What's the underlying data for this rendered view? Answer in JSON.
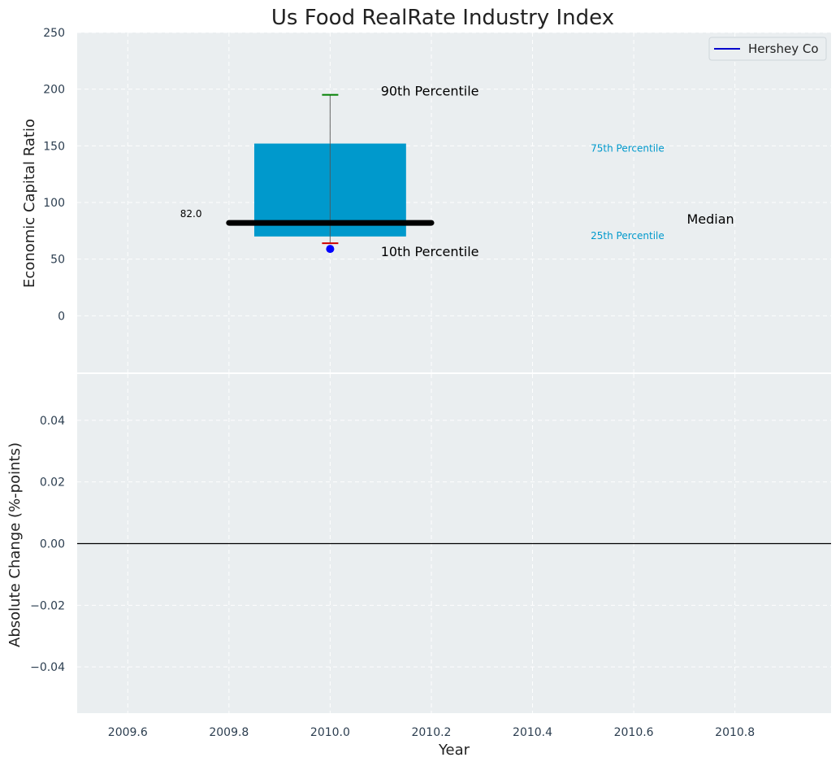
{
  "chart_data": {
    "type": "box",
    "title": "Us Food RealRate Industry Index",
    "xlabel": "Year",
    "xlim": [
      2009.5,
      2010.99
    ],
    "x_ticks": [
      "2009.6",
      "2009.8",
      "2010.0",
      "2010.2",
      "2010.4",
      "2010.6",
      "2010.8"
    ],
    "top_panel": {
      "ylabel": "Economic Capital Ratio",
      "ylim": [
        -50,
        250
      ],
      "y_ticks": [
        "0",
        "50",
        "100",
        "150",
        "200",
        "250"
      ],
      "box": {
        "x": 2010.0,
        "p10": 64,
        "p25": 70,
        "median": 82,
        "p75": 152,
        "p90": 195
      },
      "hershey_point": {
        "x": 2010.0,
        "y": 59
      },
      "median_label": "82.0",
      "annotations": {
        "p90": "90th Percentile",
        "p10": "10th Percentile",
        "p75": "75th Percentile",
        "p25": "25th Percentile",
        "median": "Median"
      },
      "legend": {
        "label": "Hershey Co",
        "placement": "top-right"
      }
    },
    "bottom_panel": {
      "ylabel": "Absolute Change (%-points)",
      "ylim": [
        -0.055,
        0.055
      ],
      "y_ticks": [
        "−0.04",
        "−0.02",
        "0.00",
        "0.02",
        "0.04"
      ],
      "reference_line_y": 0.0
    },
    "colors": {
      "panel_bg": "#eaeef0",
      "box": "#0099cc",
      "median": "#000000",
      "p90": "#008000",
      "p10": "#cc0000",
      "point": "#0000ff",
      "percentile_text": "#0099cc"
    },
    "grid": true
  }
}
